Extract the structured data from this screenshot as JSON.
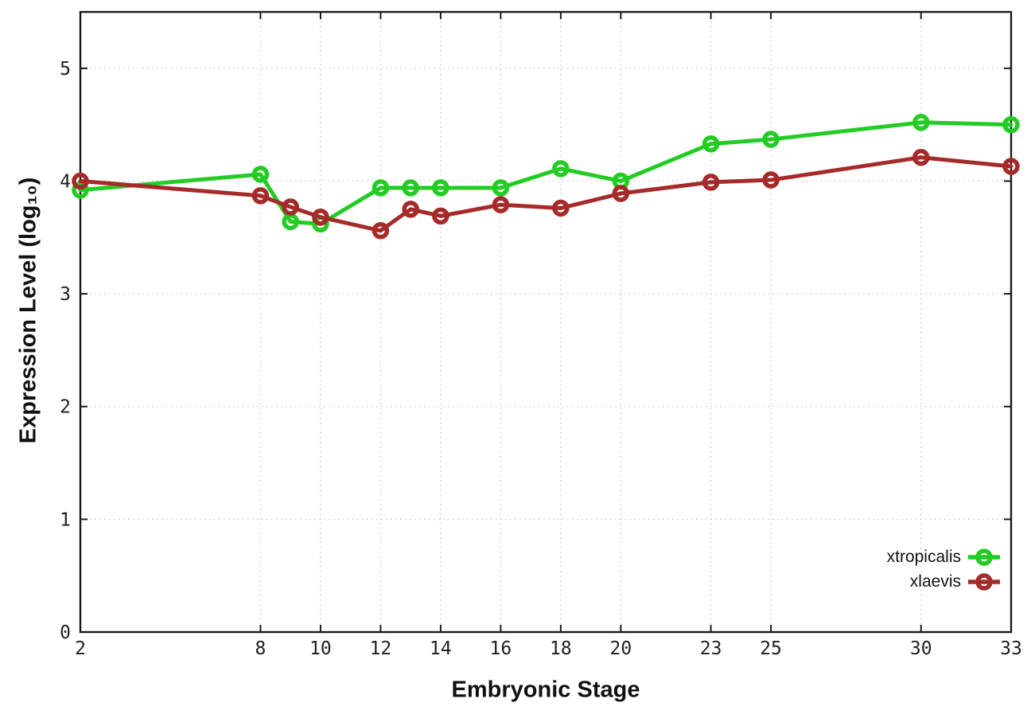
{
  "chart_data": {
    "type": "line",
    "title": "",
    "xlabel": "Embryonic Stage",
    "ylabel": "Expression Level (log₁₀)",
    "x": [
      2,
      8,
      9,
      10,
      12,
      13,
      14,
      16,
      18,
      20,
      23,
      25,
      30,
      33
    ],
    "xticks": [
      2,
      8,
      10,
      12,
      14,
      16,
      18,
      20,
      23,
      25,
      30,
      33
    ],
    "yticks": [
      0,
      1,
      2,
      3,
      4,
      5
    ],
    "xlim": [
      2,
      33
    ],
    "ylim": [
      0,
      5.5
    ],
    "grid": true,
    "grid_style": "dotted",
    "legend_position": "bottom-right",
    "series": [
      {
        "name": "xtropicalis",
        "color": "#22cc22",
        "values": [
          3.92,
          4.06,
          3.64,
          3.62,
          3.94,
          3.94,
          3.94,
          3.94,
          4.11,
          4.0,
          4.33,
          4.37,
          4.52,
          4.5
        ]
      },
      {
        "name": "xlaevis",
        "color": "#a52a2a",
        "values": [
          4.0,
          3.87,
          3.77,
          3.68,
          3.56,
          3.75,
          3.69,
          3.79,
          3.76,
          3.89,
          3.99,
          4.01,
          4.21,
          4.13
        ]
      }
    ],
    "colors": {
      "border": "#1a1a1a",
      "grid": "#c9c9c9",
      "tick_label": "#1f1f1f"
    }
  }
}
